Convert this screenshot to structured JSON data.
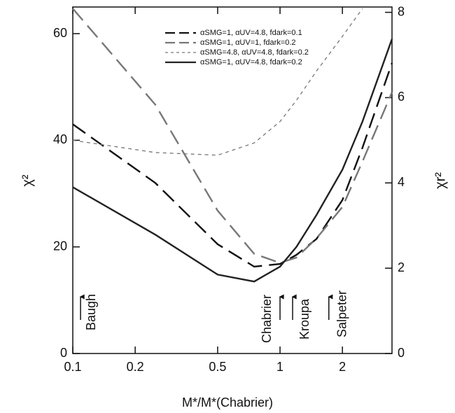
{
  "chart_data": {
    "type": "line",
    "x_label": "M*/M*(Chabrier)",
    "y_label": "χ²",
    "y2_label": "χr²",
    "x": [
      0.1,
      0.25,
      0.5,
      0.75,
      1,
      1.2,
      1.5,
      2,
      2.5,
      3.47
    ],
    "series": [
      {
        "name": "αSMG=1, αUV=4.8, fdark=0.1",
        "color": "#111111",
        "dash": "long",
        "values": [
          43,
          32,
          20.5,
          16.3,
          16.8,
          18.5,
          21.5,
          28.8,
          38.6,
          54.5
        ]
      },
      {
        "name": "αSMG=1, αUV=1, fdark=0.2",
        "color": "#777777",
        "dash": "long",
        "values": [
          64.7,
          46.7,
          26.8,
          18.7,
          17,
          18,
          21.6,
          27.5,
          36,
          49
        ]
      },
      {
        "name": "αSMG=4.8, αUV=4.8, fdark=0.2",
        "color": "#777777",
        "dash": "short",
        "values": [
          40,
          37.7,
          37.2,
          39.5,
          43.5,
          47.5,
          53,
          59.5,
          64.7,
          null
        ]
      },
      {
        "name": "αSMG=1, αUV=4.8, fdark=0.2",
        "color": "#222222",
        "dash": "solid",
        "values": [
          31.2,
          22.3,
          14.8,
          13.5,
          16.3,
          20,
          26,
          34.5,
          43.5,
          59
        ]
      }
    ],
    "xlim": [
      0.1,
      3.47
    ],
    "xticks": [
      0.1,
      0.2,
      0.5,
      1,
      2
    ],
    "log_x": true,
    "ylim": [
      0,
      65
    ],
    "yticks": [
      0,
      20,
      40,
      60
    ],
    "y2lim": [
      0,
      8.125
    ],
    "y2ticks": [
      0,
      2,
      4,
      6,
      8
    ],
    "legend": "top",
    "annotations": [
      {
        "text": "Baugh",
        "x": 0.109
      },
      {
        "text": "Chabrier",
        "x": 1
      },
      {
        "text": "Kroupa",
        "x": 1.15
      },
      {
        "text": "Salpeter",
        "x": 1.72
      }
    ]
  }
}
